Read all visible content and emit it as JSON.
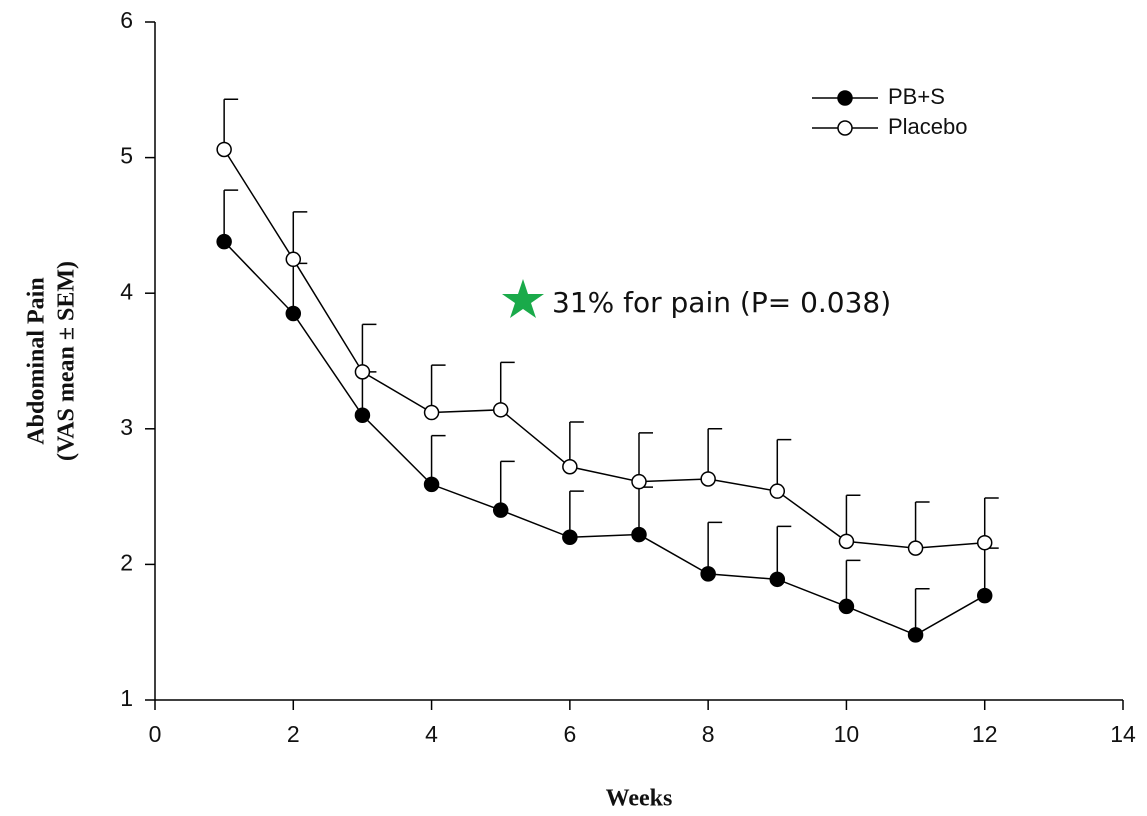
{
  "chart_data": {
    "type": "line",
    "ylabel": [
      "Abdominal Pain",
      "(VAS mean ± SEM)"
    ],
    "xlabel": "Weeks",
    "annotation": "31% for pain (P= 0.038)",
    "x": [
      1,
      2,
      3,
      4,
      5,
      6,
      7,
      8,
      9,
      10,
      11,
      12
    ],
    "series": [
      {
        "name": "PB+S",
        "color": "#000000",
        "marker": "filled",
        "values": [
          4.38,
          3.85,
          3.1,
          2.59,
          2.4,
          2.2,
          2.22,
          1.93,
          1.89,
          1.69,
          1.48,
          1.77
        ],
        "errors": [
          0.38,
          0.37,
          0.32,
          0.36,
          0.36,
          0.34,
          0.35,
          0.38,
          0.39,
          0.34,
          0.34,
          0.35
        ]
      },
      {
        "name": "Placebo",
        "color": "#000000",
        "marker": "open",
        "values": [
          5.06,
          4.25,
          3.42,
          3.12,
          3.14,
          2.72,
          2.61,
          2.63,
          2.54,
          2.17,
          2.12,
          2.16
        ],
        "errors": [
          0.37,
          0.35,
          0.35,
          0.35,
          0.35,
          0.33,
          0.36,
          0.37,
          0.38,
          0.34,
          0.34,
          0.33
        ]
      }
    ],
    "xlim": [
      0,
      14
    ],
    "xticks": [
      0,
      2,
      4,
      6,
      8,
      10,
      12,
      14
    ],
    "ylim": [
      1,
      6
    ],
    "yticks": [
      1,
      2,
      3,
      4,
      5,
      6
    ],
    "legend": "upper right",
    "grid": false
  }
}
